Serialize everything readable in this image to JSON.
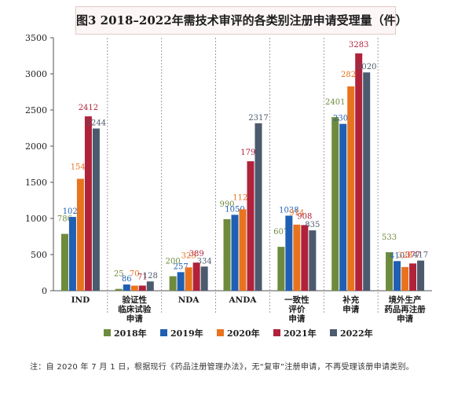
{
  "chart_data": {
    "type": "bar",
    "title": "图3 2018–2022年需技术审评的各类别注册申请受理量（件）",
    "categories": [
      "IND",
      "验证性临床试验申请",
      "NDA",
      "ANDA",
      "一致性评价申请",
      "补充申请",
      "境外生产药品再注册申请"
    ],
    "category_label_lines": [
      [
        "IND"
      ],
      [
        "验证性",
        "临床试验",
        "申请"
      ],
      [
        "NDA"
      ],
      [
        "ANDA"
      ],
      [
        "一致性",
        "评价",
        "申请"
      ],
      [
        "补充",
        "申请"
      ],
      [
        "境外生产",
        "药品再注册",
        "申请"
      ]
    ],
    "series": [
      {
        "name": "2018年",
        "color": "#6e8b3d",
        "values": [
          786,
          25,
          200,
          990,
          607,
          2401,
          533
        ]
      },
      {
        "name": "2019年",
        "color": "#1f5fb4",
        "values": [
          1021,
          86,
          257,
          1050,
          1038,
          2308,
          410
        ]
      },
      {
        "name": "2020年",
        "color": "#e8731f",
        "values": [
          1548,
          70,
          323,
          1126,
          914,
          2827,
          328
        ]
      },
      {
        "name": "2021年",
        "color": "#b0223a",
        "values": [
          2412,
          71,
          389,
          1791,
          908,
          3283,
          377
        ]
      },
      {
        "name": "2022年",
        "color": "#4c5a6e",
        "values": [
          2244,
          128,
          334,
          2317,
          835,
          3020,
          417
        ]
      }
    ],
    "ylim": [
      0,
      3500
    ],
    "yticks": [
      0,
      500,
      1000,
      1500,
      2000,
      2500,
      3000,
      3500
    ],
    "ytick_labels": [
      "0",
      "500",
      "1000",
      "1500",
      "2000",
      "2500",
      "3000",
      "3500"
    ],
    "legend_position": "bottom",
    "grid": "vertical dashed separators between categories"
  },
  "note": "注：自 2020 年 7 月 1 日，根据现行《药品注册管理办法》，无“复审”注册申请，不再受理该册申请类别。"
}
